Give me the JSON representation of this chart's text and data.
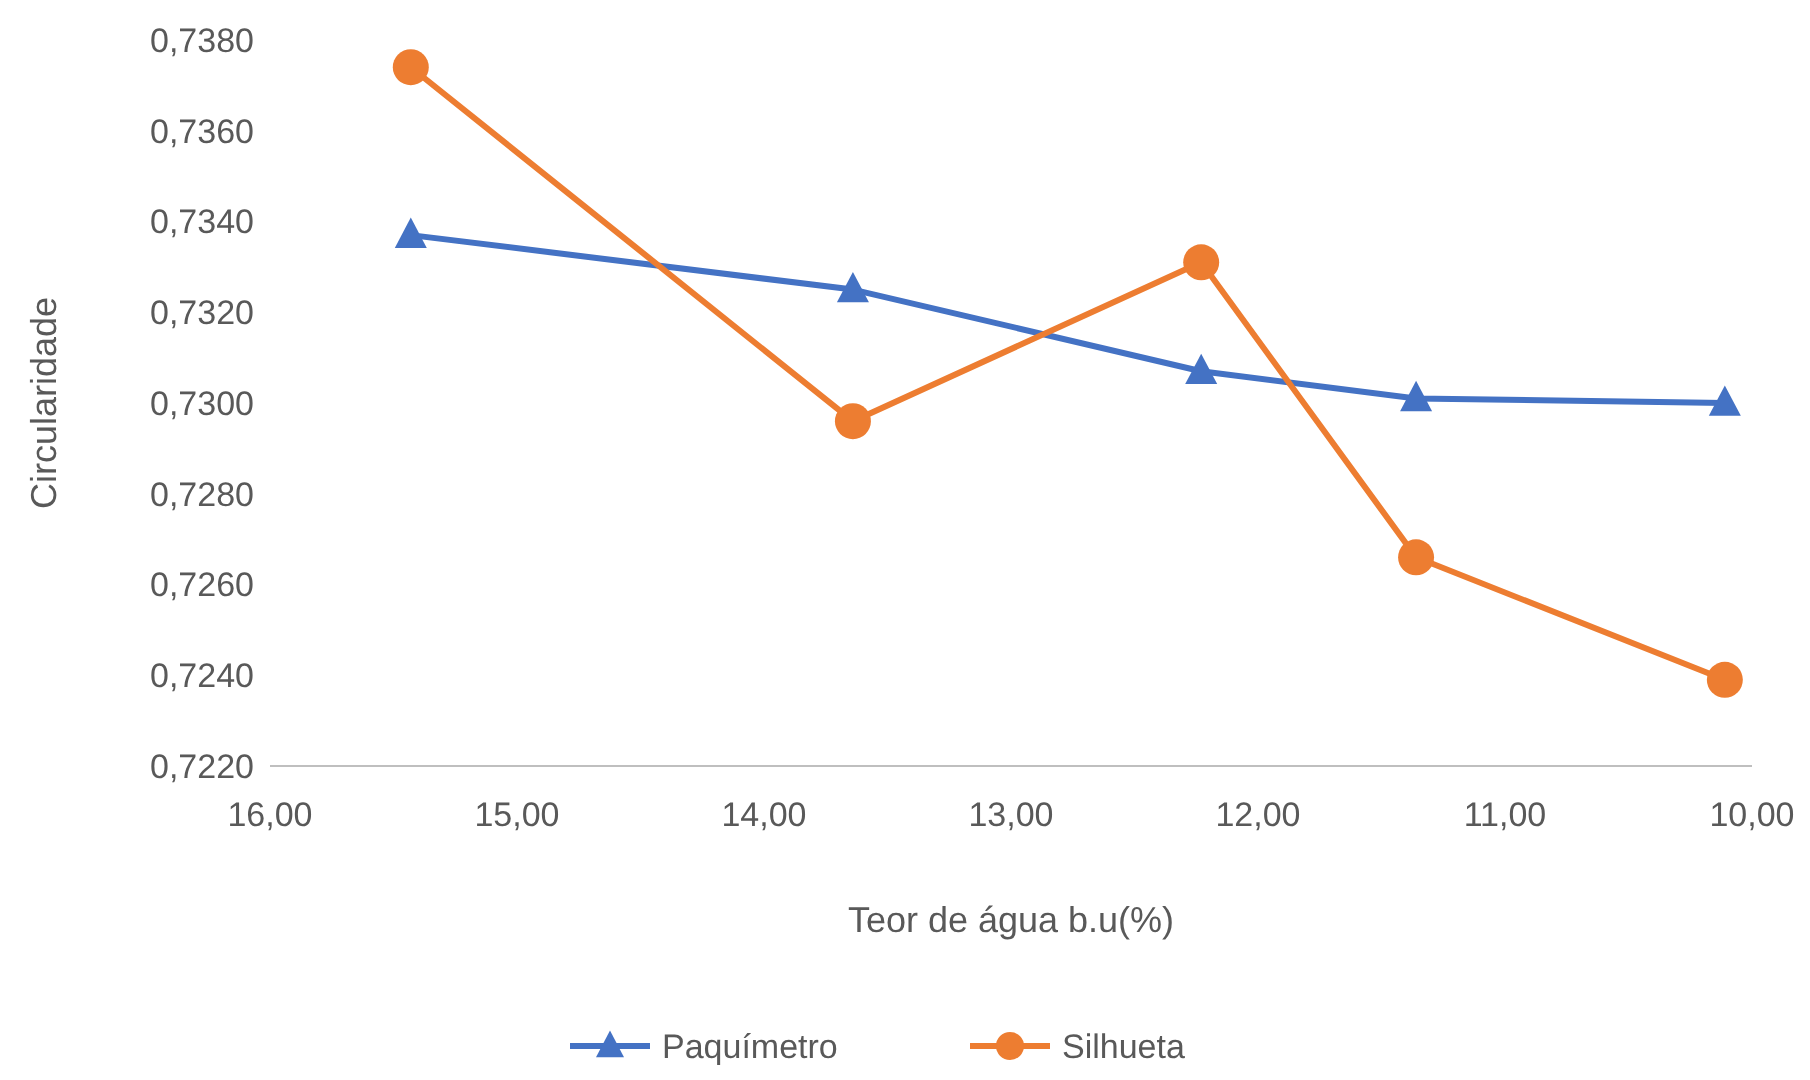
{
  "chart_data": {
    "type": "line",
    "xlabel": "Teor de água b.u(%)",
    "ylabel": "Circularidade",
    "x": [
      15.43,
      13.64,
      12.23,
      11.36,
      10.11
    ],
    "series": [
      {
        "name": "Paquímetro",
        "color": "#4472c4",
        "marker": "triangle",
        "values": [
          0.7337,
          0.7325,
          0.7307,
          0.7301,
          0.73
        ]
      },
      {
        "name": "Silhueta",
        "color": "#ed7d31",
        "marker": "circle",
        "values": [
          0.7374,
          0.7296,
          0.7331,
          0.7266,
          0.7239
        ]
      }
    ],
    "xlim": [
      16,
      10
    ],
    "xticks": [
      {
        "value": 16,
        "label": "16,00"
      },
      {
        "value": 15,
        "label": "15,00"
      },
      {
        "value": 14,
        "label": "14,00"
      },
      {
        "value": 13,
        "label": "13,00"
      },
      {
        "value": 12,
        "label": "12,00"
      },
      {
        "value": 11,
        "label": "11,00"
      },
      {
        "value": 10,
        "label": "10,00"
      }
    ],
    "ylim": [
      0.722,
      0.738
    ],
    "yticks": [
      {
        "value": 0.722,
        "label": "0,7220"
      },
      {
        "value": 0.724,
        "label": "0,7240"
      },
      {
        "value": 0.726,
        "label": "0,7260"
      },
      {
        "value": 0.728,
        "label": "0,7280"
      },
      {
        "value": 0.73,
        "label": "0,7300"
      },
      {
        "value": 0.732,
        "label": "0,7320"
      },
      {
        "value": 0.734,
        "label": "0,7340"
      },
      {
        "value": 0.736,
        "label": "0,7360"
      },
      {
        "value": 0.738,
        "label": "0,7380"
      }
    ],
    "grid": false,
    "legend": "bottom",
    "line_style": "solid"
  }
}
